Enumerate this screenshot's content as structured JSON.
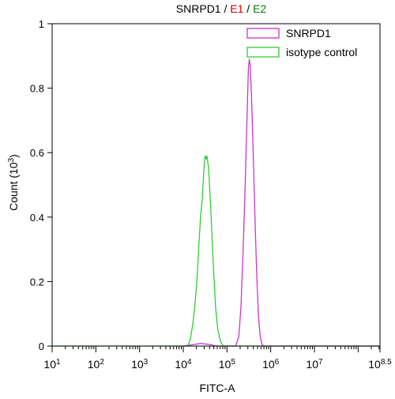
{
  "title": {
    "parts": [
      {
        "text": "SNRPD1 / ",
        "color": "#000000"
      },
      {
        "text": "E1",
        "color": "#cc0000"
      },
      {
        "text": " / ",
        "color": "#000000"
      },
      {
        "text": "E2",
        "color": "#008000"
      }
    ]
  },
  "chart_data": {
    "type": "line",
    "xlabel": "FITC-A",
    "ylabel": "Count",
    "ylabel_unit": "(10",
    "ylabel_unit_exp": "3",
    "ylabel_unit_close": ")",
    "x_scale": "log",
    "xlim": [
      1,
      8.5
    ],
    "ylim": [
      0,
      1
    ],
    "x_ticks": [
      {
        "pos": 1,
        "base": "10",
        "exp": "1"
      },
      {
        "pos": 2,
        "base": "10",
        "exp": "2"
      },
      {
        "pos": 3,
        "base": "10",
        "exp": "3"
      },
      {
        "pos": 4,
        "base": "10",
        "exp": "4"
      },
      {
        "pos": 5,
        "base": "10",
        "exp": "5"
      },
      {
        "pos": 6,
        "base": "10",
        "exp": "6"
      },
      {
        "pos": 7,
        "base": "10",
        "exp": "7"
      },
      {
        "pos": 8.5,
        "base": "10",
        "exp": "8.5"
      }
    ],
    "y_ticks": [
      {
        "value": 0,
        "label": "0"
      },
      {
        "value": 0.2,
        "label": "0.2"
      },
      {
        "value": 0.4,
        "label": "0.4"
      },
      {
        "value": 0.6,
        "label": "0.6"
      },
      {
        "value": 0.8,
        "label": "0.8"
      },
      {
        "value": 1,
        "label": "1"
      }
    ],
    "legend_position": "top-right",
    "series": [
      {
        "name": "SNRPD1",
        "color": "#cc33cc",
        "points": [
          [
            4.0,
            0.0
          ],
          [
            4.2,
            0.004
          ],
          [
            4.4,
            0.008
          ],
          [
            4.6,
            0.005
          ],
          [
            4.75,
            0.0
          ],
          [
            5.2,
            0.0
          ],
          [
            5.27,
            0.03
          ],
          [
            5.32,
            0.12
          ],
          [
            5.37,
            0.3
          ],
          [
            5.42,
            0.52
          ],
          [
            5.46,
            0.72
          ],
          [
            5.49,
            0.86
          ],
          [
            5.51,
            0.89
          ],
          [
            5.53,
            0.87
          ],
          [
            5.56,
            0.78
          ],
          [
            5.6,
            0.6
          ],
          [
            5.64,
            0.4
          ],
          [
            5.68,
            0.22
          ],
          [
            5.72,
            0.09
          ],
          [
            5.76,
            0.03
          ],
          [
            5.8,
            0.005
          ],
          [
            5.84,
            0.0
          ],
          [
            8.5,
            0.0
          ]
        ]
      },
      {
        "name": "isotype control",
        "color": "#33cc33",
        "points": [
          [
            1.0,
            0.0
          ],
          [
            4.1,
            0.0
          ],
          [
            4.16,
            0.02
          ],
          [
            4.22,
            0.07
          ],
          [
            4.27,
            0.13
          ],
          [
            4.32,
            0.22
          ],
          [
            4.36,
            0.32
          ],
          [
            4.4,
            0.41
          ],
          [
            4.43,
            0.45
          ],
          [
            4.46,
            0.52
          ],
          [
            4.48,
            0.57
          ],
          [
            4.5,
            0.59
          ],
          [
            4.52,
            0.58
          ],
          [
            4.54,
            0.59
          ],
          [
            4.56,
            0.57
          ],
          [
            4.58,
            0.55
          ],
          [
            4.6,
            0.5
          ],
          [
            4.63,
            0.42
          ],
          [
            4.66,
            0.33
          ],
          [
            4.7,
            0.22
          ],
          [
            4.74,
            0.12
          ],
          [
            4.79,
            0.05
          ],
          [
            4.85,
            0.015
          ],
          [
            4.92,
            0.0
          ],
          [
            8.5,
            0.0
          ]
        ]
      }
    ]
  }
}
